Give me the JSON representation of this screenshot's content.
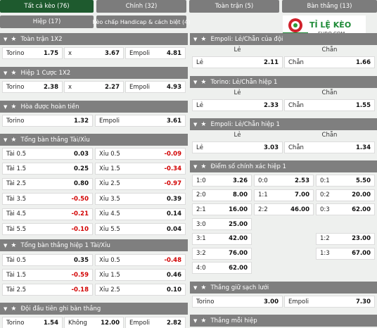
{
  "tabs": {
    "all": "Tất cả kèo (76)",
    "main": "Chính (32)",
    "full": "Toàn trận (5)",
    "goals": "Bàn thắng (13)",
    "half": "Hiệp (17)",
    "handicap": "Kèo chấp Handicap & cách biệt (4)"
  },
  "logo": {
    "text_top": "TỈ LỆ KÈO",
    "text_bottom": "EURO.COM"
  },
  "left": {
    "s1": {
      "title": "Toàn trận 1X2",
      "row": [
        [
          "Torino",
          "1.75"
        ],
        [
          "x",
          "3.67"
        ],
        [
          "Empoli",
          "4.81"
        ]
      ]
    },
    "s2": {
      "title": "Hiệp 1 Cược 1X2",
      "row": [
        [
          "Torino",
          "2.38"
        ],
        [
          "x",
          "2.27"
        ],
        [
          "Empoli",
          "4.93"
        ]
      ]
    },
    "s3": {
      "title": "Hòa được hoàn tiền",
      "row": [
        [
          "Torino",
          "1.32"
        ],
        [
          "Empoli",
          "3.61"
        ]
      ]
    },
    "s4": {
      "title": "Tổng bàn thắng Tài/Xỉu",
      "rows": [
        [
          [
            "Tài 0.5",
            "0.03"
          ],
          [
            "Xỉu 0.5",
            "-0.09"
          ]
        ],
        [
          [
            "Tài 1.5",
            "0.25"
          ],
          [
            "Xỉu 1.5",
            "-0.34"
          ]
        ],
        [
          [
            "Tài 2.5",
            "0.80"
          ],
          [
            "Xỉu 2.5",
            "-0.97"
          ]
        ],
        [
          [
            "Tài 3.5",
            "-0.50"
          ],
          [
            "Xỉu 3.5",
            "0.39"
          ]
        ],
        [
          [
            "Tài 4.5",
            "-0.21"
          ],
          [
            "Xỉu 4.5",
            "0.14"
          ]
        ],
        [
          [
            "Tài 5.5",
            "-0.10"
          ],
          [
            "Xỉu 5.5",
            "0.04"
          ]
        ]
      ]
    },
    "s5": {
      "title": "Tổng bàn thắng hiệp 1 Tài/Xỉu",
      "rows": [
        [
          [
            "Tài 0.5",
            "0.35"
          ],
          [
            "Xỉu 0.5",
            "-0.48"
          ]
        ],
        [
          [
            "Tài 1.5",
            "-0.59"
          ],
          [
            "Xỉu 1.5",
            "0.46"
          ]
        ],
        [
          [
            "Tài 2.5",
            "-0.18"
          ],
          [
            "Xỉu 2.5",
            "0.10"
          ]
        ]
      ]
    },
    "s6": {
      "title": "Đội đầu tiên ghi bàn thắng",
      "row": [
        [
          "Torino",
          "1.54"
        ],
        [
          "Không",
          "12.00"
        ],
        [
          "Empoli",
          "2.82"
        ]
      ]
    }
  },
  "right": {
    "r1": {
      "title": "Empoli: Lẻ/Chẵn của đội",
      "le": "Lẻ",
      "chan": "Chẵn",
      "row": [
        [
          "Lẻ",
          "2.11"
        ],
        [
          "Chẵn",
          "1.66"
        ]
      ]
    },
    "r2": {
      "title": "Torino: Lẻ/Chẵn hiệp 1",
      "le": "Lẻ",
      "chan": "Chẵn",
      "row": [
        [
          "Lẻ",
          "2.33"
        ],
        [
          "Chẵn",
          "1.55"
        ]
      ]
    },
    "r3": {
      "title": "Empoli: Lẻ/Chẵn hiệp 1",
      "le": "Lẻ",
      "chan": "Chẵn",
      "row": [
        [
          "Lẻ",
          "3.03"
        ],
        [
          "Chẵn",
          "1.34"
        ]
      ]
    },
    "r4": {
      "title": "Điểm số chính xác hiệp 1",
      "col1": [
        [
          "1:0",
          "3.26"
        ],
        [
          "2:0",
          "8.00"
        ],
        [
          "2:1",
          "16.00"
        ],
        [
          "3:0",
          "25.00"
        ],
        [
          "3:1",
          "42.00"
        ],
        [
          "3:2",
          "76.00"
        ],
        [
          "4:0",
          "62.00"
        ]
      ],
      "col2": [
        [
          "0:0",
          "2.53"
        ],
        [
          "1:1",
          "7.00"
        ],
        [
          "2:2",
          "46.00"
        ]
      ],
      "col3": [
        [
          "0:1",
          "5.50"
        ],
        [
          "0:2",
          "20.00"
        ],
        [
          "0:3",
          "62.00"
        ],
        [
          "1:2",
          "23.00"
        ],
        [
          "1:3",
          "67.00"
        ]
      ]
    },
    "r5": {
      "title": "Thắng giữ sạch lưới",
      "row": [
        [
          "Torino",
          "3.00"
        ],
        [
          "Empoli",
          "7.30"
        ]
      ]
    },
    "r6": {
      "title": "Thắng mỗi hiệp"
    }
  }
}
